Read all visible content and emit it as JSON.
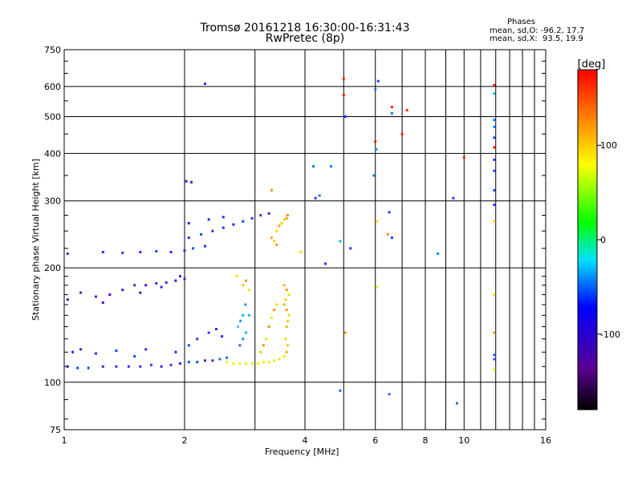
{
  "chart_data": {
    "type": "scatter",
    "title": "Tromsø 20161218 16:30:00-16:31:43",
    "subtitle": "RwPretec (8p)",
    "xlabel": "Frequency [MHz]",
    "ylabel": "Stationary phase Virtual Height [km]",
    "x_scale": "log",
    "y_scale": "log",
    "xlim": [
      1,
      16
    ],
    "ylim": [
      75,
      750
    ],
    "x_ticks": [
      1,
      2,
      4,
      6,
      8,
      10,
      16
    ],
    "y_ticks": [
      75,
      100,
      200,
      300,
      400,
      500,
      600,
      750
    ],
    "grid": true,
    "colorbar": {
      "label": "[deg]",
      "range": [
        -180,
        180
      ],
      "ticks": [
        100,
        0,
        -100
      ]
    },
    "stats": {
      "heading": "Phases",
      "o_line": "mean, sd,O: -96.2, 17.7",
      "x_line": "mean, sd,X:  93.5, 19.9"
    },
    "series": [
      {
        "values": [
          [
            1.02,
            110
          ],
          [
            1.08,
            109
          ],
          [
            1.15,
            109
          ],
          [
            1.25,
            110
          ],
          [
            1.35,
            110
          ],
          [
            1.45,
            110
          ],
          [
            1.55,
            110
          ],
          [
            1.65,
            111
          ],
          [
            1.75,
            110
          ],
          [
            1.85,
            111
          ],
          [
            1.95,
            112
          ],
          [
            2.05,
            113
          ],
          [
            2.15,
            113
          ],
          [
            2.25,
            114
          ],
          [
            2.35,
            114
          ],
          [
            2.45,
            115
          ],
          [
            2.55,
            116
          ],
          [
            1.05,
            120
          ],
          [
            1.1,
            122
          ],
          [
            1.2,
            119
          ],
          [
            1.35,
            121
          ],
          [
            1.5,
            117
          ],
          [
            1.6,
            122
          ],
          [
            1.9,
            120
          ],
          [
            2.05,
            125
          ],
          [
            2.15,
            130
          ],
          [
            2.3,
            135
          ],
          [
            2.4,
            138
          ],
          [
            2.48,
            132
          ],
          [
            1.02,
            165
          ],
          [
            1.1,
            172
          ],
          [
            1.2,
            168
          ],
          [
            1.3,
            170
          ],
          [
            1.4,
            175
          ],
          [
            1.5,
            180
          ],
          [
            1.6,
            180
          ],
          [
            1.7,
            182
          ],
          [
            1.8,
            183
          ],
          [
            1.9,
            185
          ],
          [
            2.0,
            187
          ],
          [
            1.25,
            162
          ],
          [
            1.55,
            172
          ],
          [
            1.75,
            178
          ],
          [
            1.95,
            190
          ],
          [
            1.02,
            218
          ],
          [
            1.25,
            220
          ],
          [
            1.4,
            219
          ],
          [
            1.55,
            220
          ],
          [
            1.7,
            221
          ],
          [
            1.85,
            220
          ],
          [
            2.0,
            222
          ],
          [
            2.1,
            225
          ],
          [
            2.25,
            228
          ],
          [
            2.05,
            240
          ],
          [
            2.2,
            245
          ],
          [
            2.35,
            250
          ],
          [
            2.5,
            255
          ],
          [
            2.65,
            260
          ],
          [
            2.8,
            265
          ],
          [
            2.95,
            270
          ],
          [
            3.1,
            275
          ],
          [
            3.25,
            278
          ],
          [
            2.05,
            262
          ],
          [
            2.3,
            268
          ],
          [
            2.5,
            272
          ],
          [
            2.02,
            338
          ],
          [
            2.08,
            336
          ],
          [
            2.25,
            610
          ],
          [
            2.72,
            140
          ],
          [
            2.76,
            145
          ],
          [
            2.8,
            150
          ],
          [
            2.84,
            160
          ],
          [
            2.9,
            150
          ],
          [
            2.8,
            130
          ],
          [
            2.85,
            135
          ],
          [
            2.75,
            125
          ],
          [
            4.2,
            370
          ],
          [
            4.35,
            310
          ],
          [
            4.25,
            305
          ],
          [
            4.5,
            205
          ],
          [
            4.65,
            370
          ],
          [
            4.9,
            235
          ],
          [
            5.2,
            225
          ],
          [
            5.05,
            500
          ],
          [
            6.0,
            590
          ],
          [
            6.03,
            410
          ],
          [
            5.95,
            350
          ],
          [
            6.5,
            280
          ],
          [
            6.6,
            510
          ],
          [
            6.6,
            240
          ],
          [
            6.1,
            620
          ],
          [
            6.5,
            93
          ],
          [
            4.9,
            95
          ],
          [
            8.6,
            218
          ],
          [
            9.4,
            305
          ],
          [
            9.6,
            88
          ],
          [
            11.9,
            575
          ],
          [
            11.9,
            490
          ],
          [
            11.9,
            470
          ],
          [
            11.9,
            440
          ],
          [
            11.9,
            385
          ],
          [
            11.9,
            360
          ],
          [
            11.9,
            320
          ],
          [
            11.9,
            293
          ],
          [
            11.9,
            118
          ],
          [
            11.9,
            115
          ]
        ]
      },
      {
        "values": [
          [
            2.55,
            113
          ],
          [
            2.65,
            112
          ],
          [
            2.75,
            112
          ],
          [
            2.85,
            112
          ],
          [
            2.95,
            112
          ],
          [
            3.05,
            112
          ],
          [
            3.15,
            113
          ],
          [
            3.25,
            113
          ],
          [
            3.35,
            114
          ],
          [
            3.45,
            115
          ],
          [
            3.55,
            117
          ],
          [
            3.6,
            120
          ],
          [
            3.62,
            125
          ],
          [
            3.58,
            130
          ],
          [
            3.6,
            140
          ],
          [
            3.62,
            145
          ],
          [
            3.65,
            150
          ],
          [
            3.6,
            155
          ],
          [
            3.55,
            160
          ],
          [
            3.58,
            165
          ],
          [
            3.65,
            170
          ],
          [
            3.6,
            175
          ],
          [
            3.55,
            180
          ],
          [
            3.2,
            130
          ],
          [
            3.25,
            140
          ],
          [
            3.3,
            148
          ],
          [
            3.35,
            155
          ],
          [
            3.4,
            160
          ],
          [
            3.1,
            120
          ],
          [
            3.15,
            125
          ],
          [
            2.8,
            180
          ],
          [
            2.85,
            185
          ],
          [
            2.9,
            175
          ],
          [
            2.7,
            190
          ],
          [
            3.3,
            240
          ],
          [
            3.4,
            250
          ],
          [
            3.45,
            258
          ],
          [
            3.5,
            262
          ],
          [
            3.55,
            268
          ],
          [
            3.6,
            270
          ],
          [
            3.62,
            275
          ],
          [
            3.4,
            230
          ],
          [
            3.35,
            235
          ],
          [
            3.3,
            320
          ],
          [
            5.0,
            630
          ],
          [
            5.0,
            570
          ],
          [
            6.6,
            530
          ],
          [
            7.2,
            520
          ],
          [
            7.0,
            450
          ],
          [
            6.0,
            430
          ],
          [
            10.0,
            390
          ],
          [
            6.05,
            265
          ],
          [
            6.05,
            178
          ],
          [
            6.45,
            245
          ],
          [
            11.9,
            415
          ],
          [
            11.9,
            265
          ],
          [
            11.9,
            170
          ],
          [
            11.9,
            135
          ],
          [
            11.9,
            108
          ],
          [
            11.9,
            605
          ],
          [
            5.05,
            135
          ],
          [
            3.9,
            220
          ]
        ]
      }
    ]
  }
}
